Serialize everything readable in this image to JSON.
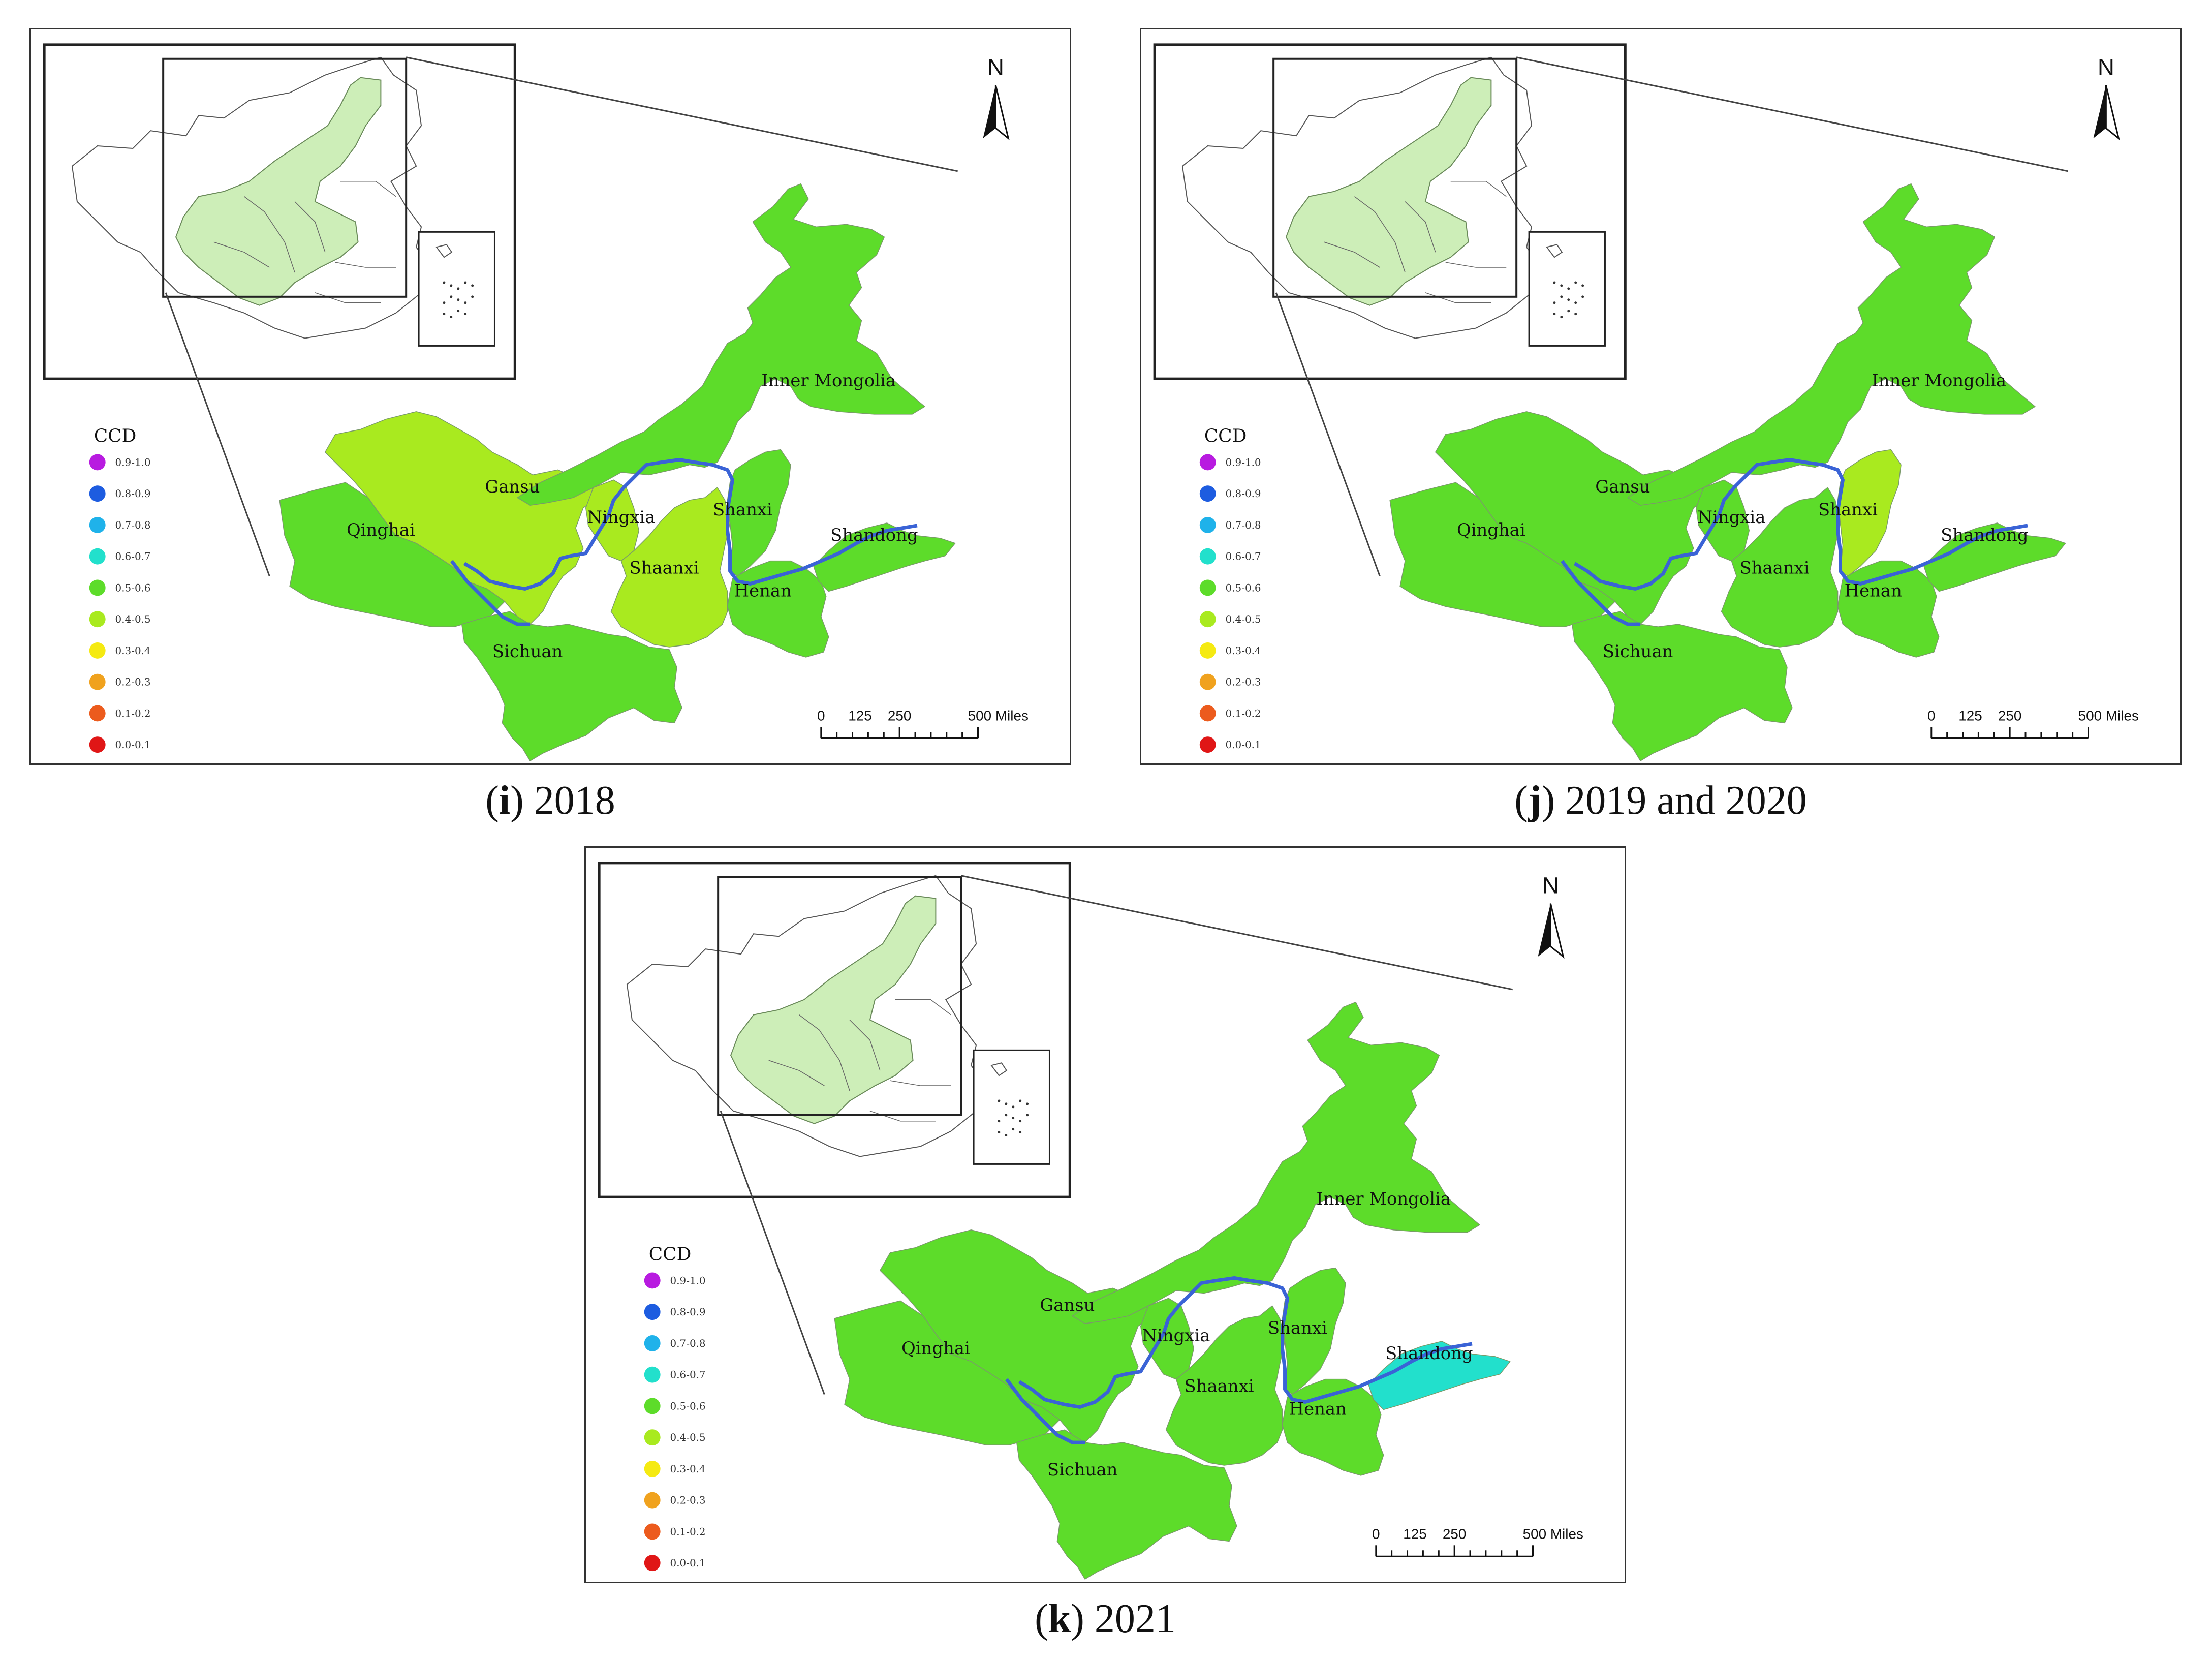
{
  "map_common": {
    "legend_title": "CCD",
    "legend": [
      {
        "label": "0.9-1.0",
        "color": "#b81be0"
      },
      {
        "label": "0.8-0.9",
        "color": "#1d5ce0"
      },
      {
        "label": "0.7-0.8",
        "color": "#1fb2ea"
      },
      {
        "label": "0.6-0.7",
        "color": "#22e0cc"
      },
      {
        "label": "0.5-0.6",
        "color": "#5ddc2a"
      },
      {
        "label": "0.4-0.5",
        "color": "#a9ea1f"
      },
      {
        "label": "0.3-0.4",
        "color": "#f5ea12"
      },
      {
        "label": "0.2-0.3",
        "color": "#f0a21e"
      },
      {
        "label": "0.1-0.2",
        "color": "#ec5b1d"
      },
      {
        "label": "0.0-0.1",
        "color": "#e01616"
      }
    ],
    "north": "N",
    "scale_ticks": [
      "0",
      "125",
      "250",
      "500 Miles"
    ],
    "river_color": "#3a63d6",
    "inset_highlight_color": "#cdeeb8"
  },
  "panels": [
    {
      "caption_letter": "i",
      "caption_text": "2018",
      "labels": {
        "inner_mongolia": "Inner Mongolia",
        "gansu": "Gansu",
        "ningxia": "Ningxia",
        "shanxi": "Shanxi",
        "shandong": "Shandong",
        "qinghai": "Qinghai",
        "shaanxi": "Shaanxi",
        "henan": "Henan",
        "sichuan": "Sichuan"
      },
      "ccd_class": {
        "inner_mongolia": "0.5-0.6",
        "gansu": "0.4-0.5",
        "ningxia": "0.4-0.5",
        "shanxi": "0.5-0.6",
        "shandong": "0.5-0.6",
        "qinghai": "0.5-0.6",
        "shaanxi": "0.4-0.5",
        "henan": "0.5-0.6",
        "sichuan": "0.5-0.6"
      },
      "colors": {
        "inner_mongolia": "#5ddc2a",
        "gansu": "#a9ea1f",
        "ningxia": "#a9ea1f",
        "shanxi": "#5ddc2a",
        "shandong": "#5ddc2a",
        "qinghai": "#5ddc2a",
        "shaanxi": "#a9ea1f",
        "henan": "#5ddc2a",
        "sichuan": "#5ddc2a"
      }
    },
    {
      "caption_letter": "j",
      "caption_text": "2019 and 2020",
      "labels": {
        "inner_mongolia": "Inner Mongolia",
        "gansu": "Gansu",
        "ningxia": "Ningxia",
        "shanxi": "Shanxi",
        "shandong": "Shandong",
        "qinghai": "Qinghai",
        "shaanxi": "Shaanxi",
        "henan": "Henan",
        "sichuan": "Sichuan"
      },
      "ccd_class": {
        "inner_mongolia": "0.5-0.6",
        "gansu": "0.5-0.6",
        "ningxia": "0.5-0.6",
        "shanxi": "0.4-0.5",
        "shandong": "0.5-0.6",
        "qinghai": "0.5-0.6",
        "shaanxi": "0.5-0.6",
        "henan": "0.5-0.6",
        "sichuan": "0.5-0.6"
      },
      "colors": {
        "inner_mongolia": "#5ddc2a",
        "gansu": "#5ddc2a",
        "ningxia": "#5ddc2a",
        "shanxi": "#a9ea1f",
        "shandong": "#5ddc2a",
        "qinghai": "#5ddc2a",
        "shaanxi": "#5ddc2a",
        "henan": "#5ddc2a",
        "sichuan": "#5ddc2a"
      }
    },
    {
      "caption_letter": "k",
      "caption_text": "2021",
      "labels": {
        "inner_mongolia": "Inner Mongolia",
        "gansu": "Gansu",
        "ningxia": "Ningxia",
        "shanxi": "Shanxi",
        "shandong": "Shandong",
        "qinghai": "Qinghai",
        "shaanxi": "Shaanxi",
        "henan": "Henan",
        "sichuan": "Sichuan"
      },
      "ccd_class": {
        "inner_mongolia": "0.5-0.6",
        "gansu": "0.5-0.6",
        "ningxia": "0.5-0.6",
        "shanxi": "0.5-0.6",
        "shandong": "0.6-0.7",
        "qinghai": "0.5-0.6",
        "shaanxi": "0.5-0.6",
        "henan": "0.5-0.6",
        "sichuan": "0.5-0.6"
      },
      "colors": {
        "inner_mongolia": "#5ddc2a",
        "gansu": "#5ddc2a",
        "ningxia": "#5ddc2a",
        "shanxi": "#5ddc2a",
        "shandong": "#22e0cc",
        "qinghai": "#5ddc2a",
        "shaanxi": "#5ddc2a",
        "henan": "#5ddc2a",
        "sichuan": "#5ddc2a"
      }
    }
  ]
}
